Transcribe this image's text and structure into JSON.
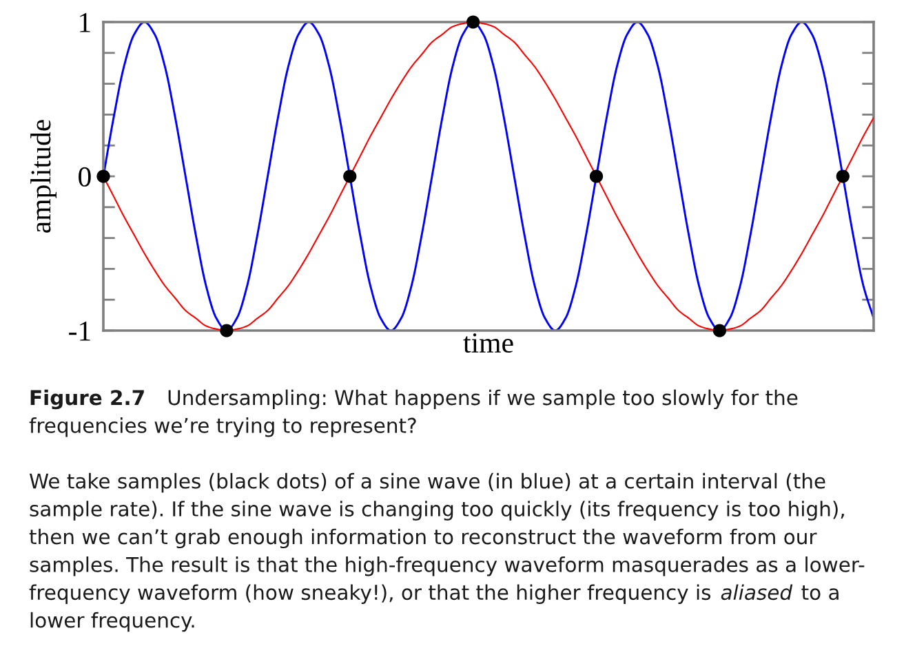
{
  "chart_data": {
    "type": "line",
    "xlabel": "time",
    "ylabel": "amplitude",
    "tick_labels": "y",
    "categories": [
      null,
      null,
      null,
      null,
      null,
      null,
      null,
      null,
      null,
      null,
      null,
      null,
      null,
      null,
      null,
      null,
      null,
      null,
      null,
      null,
      null,
      null,
      null,
      null,
      null,
      null,
      null,
      null,
      null,
      null,
      null,
      null,
      null,
      null,
      null,
      null,
      null,
      null,
      null,
      null,
      null,
      null,
      null,
      null,
      null,
      null,
      null,
      null,
      null,
      null,
      null,
      null,
      null,
      null,
      null,
      null,
      null,
      null,
      null,
      null,
      null,
      null,
      null,
      null,
      null,
      null,
      null,
      null,
      null,
      null,
      null,
      null,
      null,
      null,
      null,
      null
    ],
    "ylim": [
      -1,
      1
    ],
    "yticks": [
      -1,
      {
        "value": -0.8,
        "label": null
      },
      {
        "value": -0.6,
        "label": null
      },
      {
        "value": -0.4,
        "label": null
      },
      {
        "value": -0.2,
        "label": null
      },
      0,
      {
        "value": 0.2,
        "label": null
      },
      {
        "value": 0.4,
        "label": null
      },
      {
        "value": 0.6,
        "label": null
      },
      {
        "value": 0.8,
        "label": null
      },
      1
    ],
    "series": [
      {
        "color": "#0000ff",
        "values": [
          0,
          0.38,
          0.71,
          0.92,
          1,
          0.92,
          0.71,
          0.38,
          0,
          -0.38,
          -0.71,
          -0.92,
          -1,
          -0.92,
          -0.71,
          -0.38,
          0,
          0.38,
          0.71,
          0.92,
          1,
          0.92,
          0.71,
          0.38,
          0,
          -0.38,
          -0.71,
          -0.92,
          -1,
          -0.92,
          -0.71,
          -0.38,
          0,
          0.38,
          0.71,
          0.92,
          1,
          0.92,
          0.71,
          0.38,
          0,
          -0.38,
          -0.71,
          -0.92,
          -1,
          -0.92,
          -0.71,
          -0.38,
          0,
          0.38,
          0.71,
          0.92,
          1,
          0.92,
          0.71,
          0.38,
          0,
          -0.38,
          -0.71,
          -0.92,
          -1,
          -0.92,
          -0.71,
          -0.38,
          0,
          0.38,
          0.71,
          0.92,
          1,
          0.92,
          0.71,
          0.38,
          0,
          -0.38,
          -0.71,
          -0.92
        ]
      },
      {
        "color": "#ff0000",
        "values": [
          0,
          -0.13,
          -0.26,
          -0.38,
          -0.5,
          -0.61,
          -0.71,
          -0.79,
          -0.87,
          -0.92,
          -0.97,
          -0.99,
          -1,
          -0.99,
          -0.97,
          -0.92,
          -0.87,
          -0.79,
          -0.71,
          -0.61,
          -0.5,
          -0.38,
          -0.26,
          -0.13,
          0,
          0.13,
          0.26,
          0.38,
          0.5,
          0.61,
          0.71,
          0.79,
          0.87,
          0.92,
          0.97,
          0.99,
          1,
          0.99,
          0.97,
          0.92,
          0.87,
          0.79,
          0.71,
          0.61,
          0.5,
          0.38,
          0.26,
          0.13,
          0,
          -0.13,
          -0.26,
          -0.38,
          -0.5,
          -0.61,
          -0.71,
          -0.79,
          -0.87,
          -0.92,
          -0.97,
          -0.99,
          -1,
          -0.99,
          -0.97,
          -0.92,
          -0.87,
          -0.79,
          -0.71,
          -0.61,
          -0.5,
          -0.38,
          -0.26,
          -0.13,
          0,
          0.13,
          0.26,
          0.38
        ]
      },
      {
        "type": "scatter",
        "color": "#000000",
        "marker": "circle",
        "values": [
          0,
          null,
          null,
          null,
          null,
          null,
          null,
          null,
          null,
          null,
          null,
          null,
          -1,
          null,
          null,
          null,
          null,
          null,
          null,
          null,
          null,
          null,
          null,
          null,
          0,
          null,
          null,
          null,
          null,
          null,
          null,
          null,
          null,
          null,
          null,
          null,
          1,
          null,
          null,
          null,
          null,
          null,
          null,
          null,
          null,
          null,
          null,
          null,
          0,
          null,
          null,
          null,
          null,
          null,
          null,
          null,
          null,
          null,
          null,
          null,
          -1,
          null,
          null,
          null,
          null,
          null,
          null,
          null,
          null,
          null,
          null,
          null,
          0,
          null,
          null,
          null
        ]
      }
    ],
    "annotations": [
      "Figure 2.7",
      "Undersampling: What happens if we sample too slowly for the",
      "frequencies we’re trying to represent?",
      "We take samples (black dots) of a sine wave (in blue) at a certain interval (the",
      "sample rate). If the sine wave is changing too quickly (its frequency is too high),",
      "then we can’t grab enough information to reconstruct the waveform from our",
      "samples. The result is that the high-frequency waveform masquerades as a lower-",
      "frequency waveform (how sneaky!), or that the higher frequency is",
      "aliased",
      "to a",
      "lower frequency."
    ]
  }
}
